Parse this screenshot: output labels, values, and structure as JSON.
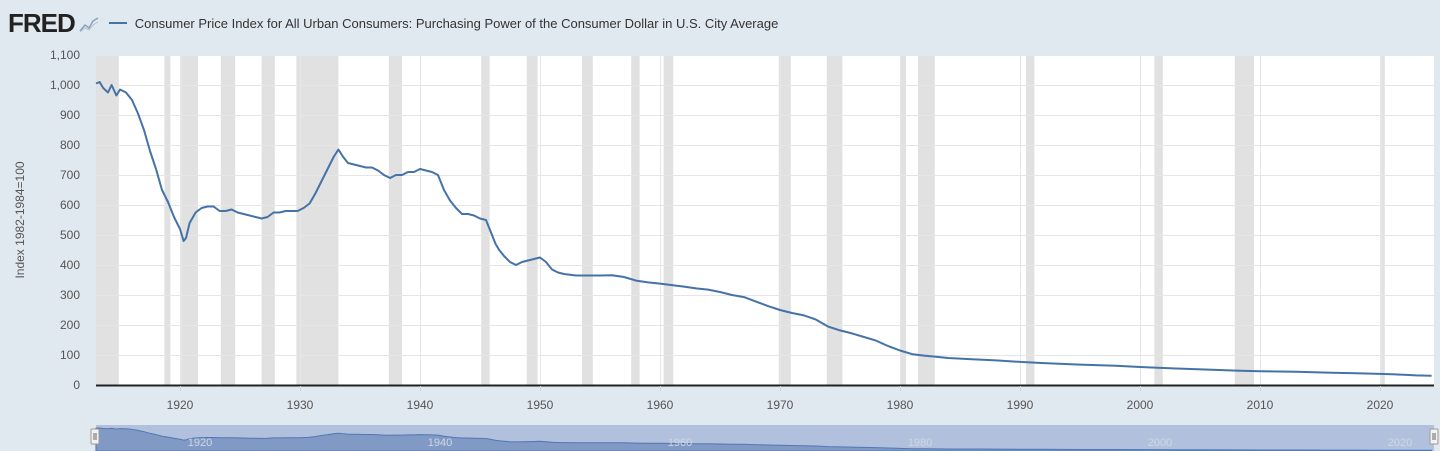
{
  "header": {
    "logo": "FRED",
    "logo_icon": "line-chart-icon",
    "title": "Consumer Price Index for All Urban Consumers: Purchasing Power of the Consumer Dollar in U.S. City Average"
  },
  "colors": {
    "series": "#4572a7",
    "recession": "#e1e1e1",
    "background": "#e1e9f0",
    "plot": "#ffffff"
  },
  "navigator": {
    "labels": [
      "1920",
      "1940",
      "1960",
      "1980",
      "2000",
      "2020"
    ]
  },
  "chart_data": {
    "type": "line",
    "title": "Consumer Price Index for All Urban Consumers: Purchasing Power of the Consumer Dollar in U.S. City Average",
    "ylabel": "Index 1982-1984=100",
    "xlabel": "",
    "xlim": [
      1913,
      2024.5
    ],
    "ylim": [
      0,
      1100
    ],
    "yticks": [
      0,
      100,
      200,
      300,
      400,
      500,
      600,
      700,
      800,
      900,
      1000,
      1100
    ],
    "ytick_labels": [
      "0",
      "100",
      "200",
      "300",
      "400",
      "500",
      "600",
      "700",
      "800",
      "900",
      "1,000",
      "1,100"
    ],
    "xticks": [
      1920,
      1930,
      1940,
      1950,
      1960,
      1970,
      1980,
      1990,
      2000,
      2010,
      2020
    ],
    "xtick_labels": [
      "1920",
      "1930",
      "1940",
      "1950",
      "1960",
      "1970",
      "1980",
      "1990",
      "2000",
      "2010",
      "2020"
    ],
    "grid": true,
    "legend": "top-left",
    "recessions": [
      [
        1913.0,
        1914.9
      ],
      [
        1918.7,
        1919.2
      ],
      [
        1920.1,
        1921.5
      ],
      [
        1923.4,
        1924.6
      ],
      [
        1926.8,
        1927.9
      ],
      [
        1929.7,
        1933.2
      ],
      [
        1937.4,
        1938.5
      ],
      [
        1945.1,
        1945.8
      ],
      [
        1948.9,
        1949.8
      ],
      [
        1953.5,
        1954.4
      ],
      [
        1957.6,
        1958.3
      ],
      [
        1960.3,
        1961.1
      ],
      [
        1969.9,
        1970.9
      ],
      [
        1973.9,
        1975.2
      ],
      [
        1980.0,
        1980.5
      ],
      [
        1981.5,
        1982.9
      ],
      [
        1990.5,
        1991.2
      ],
      [
        2001.2,
        2001.9
      ],
      [
        2007.9,
        2009.5
      ],
      [
        2020.1,
        2020.4
      ]
    ],
    "series": [
      {
        "name": "Consumer Price Index for All Urban Consumers: Purchasing Power of the Consumer Dollar in U.S. City Average",
        "x": [
          1913.0,
          1913.3,
          1913.6,
          1914.0,
          1914.3,
          1914.7,
          1915.0,
          1915.5,
          1916.0,
          1916.5,
          1917.0,
          1917.5,
          1918.0,
          1918.5,
          1919.0,
          1919.5,
          1920.0,
          1920.3,
          1920.5,
          1920.8,
          1921.3,
          1921.8,
          1922.3,
          1922.8,
          1923.3,
          1923.8,
          1924.3,
          1924.8,
          1925.3,
          1925.8,
          1926.3,
          1926.8,
          1927.3,
          1927.8,
          1928.3,
          1928.8,
          1929.3,
          1929.8,
          1930.3,
          1930.8,
          1931.3,
          1931.8,
          1932.3,
          1932.8,
          1933.2,
          1933.6,
          1934.0,
          1934.5,
          1935.0,
          1935.5,
          1936.0,
          1936.5,
          1937.0,
          1937.5,
          1938.0,
          1938.5,
          1939.0,
          1939.5,
          1940.0,
          1940.5,
          1941.0,
          1941.5,
          1942.0,
          1942.5,
          1943.0,
          1943.5,
          1944.0,
          1944.5,
          1945.0,
          1945.5,
          1946.0,
          1946.3,
          1946.6,
          1947.0,
          1947.5,
          1948.0,
          1948.5,
          1949.0,
          1949.5,
          1950.0,
          1950.5,
          1951.0,
          1951.5,
          1952.0,
          1953.0,
          1954.0,
          1955.0,
          1956.0,
          1957.0,
          1958.0,
          1959.0,
          1960.0,
          1961.0,
          1962.0,
          1963.0,
          1964.0,
          1965.0,
          1966.0,
          1967.0,
          1968.0,
          1969.0,
          1970.0,
          1971.0,
          1972.0,
          1973.0,
          1974.0,
          1975.0,
          1976.0,
          1977.0,
          1978.0,
          1979.0,
          1980.0,
          1981.0,
          1982.0,
          1983.0,
          1984.0,
          1986.0,
          1988.0,
          1990.0,
          1992.0,
          1995.0,
          1998.0,
          2000.0,
          2003.0,
          2006.0,
          2008.0,
          2010.0,
          2013.0,
          2016.0,
          2018.0,
          2020.0,
          2021.0,
          2022.0,
          2023.0,
          2024.3
        ],
        "values": [
          1005,
          1010,
          990,
          975,
          1000,
          965,
          985,
          975,
          950,
          905,
          850,
          780,
          720,
          650,
          610,
          560,
          520,
          480,
          490,
          540,
          575,
          590,
          595,
          595,
          580,
          580,
          585,
          575,
          570,
          565,
          560,
          555,
          560,
          575,
          575,
          580,
          580,
          580,
          590,
          605,
          640,
          680,
          720,
          760,
          785,
          760,
          740,
          735,
          730,
          725,
          725,
          715,
          700,
          690,
          700,
          700,
          710,
          710,
          720,
          715,
          710,
          700,
          650,
          615,
          590,
          570,
          570,
          565,
          555,
          550,
          500,
          470,
          450,
          430,
          410,
          400,
          410,
          415,
          420,
          425,
          410,
          385,
          375,
          370,
          365,
          365,
          365,
          366,
          360,
          348,
          342,
          338,
          333,
          328,
          322,
          318,
          310,
          300,
          293,
          278,
          263,
          250,
          240,
          232,
          218,
          195,
          182,
          172,
          160,
          148,
          130,
          115,
          103,
          98,
          94,
          90,
          86,
          82,
          77,
          73,
          68,
          64,
          60,
          55,
          51,
          48,
          46,
          44,
          41,
          39,
          37,
          36,
          34,
          32,
          31
        ]
      }
    ]
  }
}
